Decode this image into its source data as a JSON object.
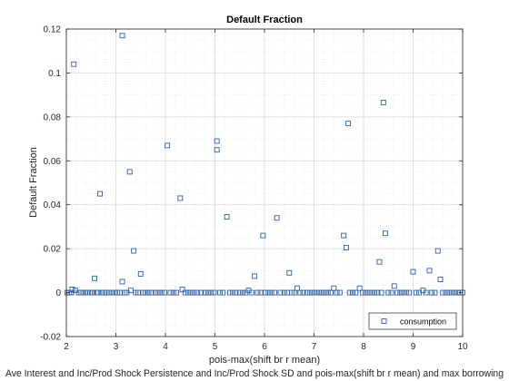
{
  "chart_data": {
    "type": "scatter",
    "title": "Default Fraction",
    "xlabel": "pois-max(shift br r mean)",
    "ylabel": "Default Fraction",
    "footer_label": "Ave Interest and Inc/Prod Shock Persistence and Inc/Prod Shock SD and pois-max(shift br r mean) and max borrowing",
    "xlim": [
      2,
      10
    ],
    "ylim": [
      -0.02,
      0.12
    ],
    "xticks": [
      "2",
      "3",
      "4",
      "5",
      "6",
      "7",
      "8",
      "9",
      "10"
    ],
    "yticks": [
      "-0.02",
      "0",
      "0.02",
      "0.04",
      "0.06",
      "0.08",
      "0.1",
      "0.12"
    ],
    "grid": true,
    "minor_grid": true,
    "legend_position": "bottom-right",
    "marker_color": "#2e5f9e",
    "series": [
      {
        "name": "consumption",
        "points": [
          [
            2.15,
            0.104
          ],
          [
            3.13,
            0.117
          ],
          [
            3.28,
            0.055
          ],
          [
            2.68,
            0.045
          ],
          [
            3.36,
            0.019
          ],
          [
            3.5,
            0.0085
          ],
          [
            2.57,
            0.0065
          ],
          [
            3.13,
            0.005
          ],
          [
            2.12,
            0.0015
          ],
          [
            2.18,
            0.001
          ],
          [
            3.3,
            0.001
          ],
          [
            4.04,
            0.067
          ],
          [
            4.3,
            0.043
          ],
          [
            4.34,
            0.0015
          ],
          [
            5.04,
            0.069
          ],
          [
            5.04,
            0.065
          ],
          [
            5.24,
            0.0345
          ],
          [
            5.97,
            0.026
          ],
          [
            6.25,
            0.034
          ],
          [
            5.8,
            0.0075
          ],
          [
            6.5,
            0.009
          ],
          [
            6.66,
            0.002
          ],
          [
            5.68,
            0.001
          ],
          [
            7.6,
            0.026
          ],
          [
            7.65,
            0.0205
          ],
          [
            7.69,
            0.077
          ],
          [
            8.4,
            0.0865
          ],
          [
            8.44,
            0.027
          ],
          [
            8.32,
            0.014
          ],
          [
            7.4,
            0.002
          ],
          [
            7.92,
            0.002
          ],
          [
            9.0,
            0.0095
          ],
          [
            9.33,
            0.01
          ],
          [
            9.5,
            0.019
          ],
          [
            9.55,
            0.006
          ],
          [
            8.62,
            0.003
          ],
          [
            9.2,
            0.001
          ],
          [
            2.02,
            0
          ],
          [
            2.06,
            0
          ],
          [
            2.1,
            0
          ],
          [
            2.25,
            0
          ],
          [
            2.3,
            0
          ],
          [
            2.34,
            0
          ],
          [
            2.38,
            0
          ],
          [
            2.42,
            0
          ],
          [
            2.48,
            0
          ],
          [
            2.53,
            0
          ],
          [
            2.6,
            0
          ],
          [
            2.64,
            0
          ],
          [
            2.72,
            0
          ],
          [
            2.76,
            0
          ],
          [
            2.8,
            0
          ],
          [
            2.86,
            0
          ],
          [
            2.92,
            0
          ],
          [
            2.98,
            0
          ],
          [
            3.03,
            0
          ],
          [
            3.08,
            0
          ],
          [
            3.18,
            0
          ],
          [
            3.22,
            0
          ],
          [
            3.4,
            0
          ],
          [
            3.45,
            0
          ],
          [
            3.55,
            0
          ],
          [
            3.6,
            0
          ],
          [
            3.66,
            0
          ],
          [
            3.72,
            0
          ],
          [
            3.8,
            0
          ],
          [
            3.86,
            0
          ],
          [
            3.92,
            0
          ],
          [
            3.98,
            0
          ],
          [
            4.1,
            0
          ],
          [
            4.16,
            0
          ],
          [
            4.22,
            0
          ],
          [
            4.4,
            0
          ],
          [
            4.46,
            0
          ],
          [
            4.52,
            0
          ],
          [
            4.58,
            0
          ],
          [
            4.64,
            0
          ],
          [
            4.72,
            0
          ],
          [
            4.8,
            0
          ],
          [
            4.86,
            0
          ],
          [
            4.92,
            0
          ],
          [
            4.98,
            0
          ],
          [
            5.1,
            0
          ],
          [
            5.16,
            0
          ],
          [
            5.3,
            0
          ],
          [
            5.36,
            0
          ],
          [
            5.42,
            0
          ],
          [
            5.5,
            0
          ],
          [
            5.56,
            0
          ],
          [
            5.62,
            0
          ],
          [
            5.74,
            0
          ],
          [
            5.86,
            0
          ],
          [
            5.92,
            0
          ],
          [
            6.02,
            0
          ],
          [
            6.08,
            0
          ],
          [
            6.14,
            0
          ],
          [
            6.2,
            0
          ],
          [
            6.32,
            0
          ],
          [
            6.4,
            0
          ],
          [
            6.46,
            0
          ],
          [
            6.55,
            0
          ],
          [
            6.6,
            0
          ],
          [
            6.72,
            0
          ],
          [
            6.78,
            0
          ],
          [
            6.86,
            0
          ],
          [
            6.92,
            0
          ],
          [
            6.98,
            0
          ],
          [
            7.04,
            0
          ],
          [
            7.1,
            0
          ],
          [
            7.16,
            0
          ],
          [
            7.22,
            0
          ],
          [
            7.28,
            0
          ],
          [
            7.34,
            0
          ],
          [
            7.46,
            0
          ],
          [
            7.52,
            0
          ],
          [
            7.72,
            0
          ],
          [
            7.78,
            0
          ],
          [
            7.84,
            0
          ],
          [
            7.98,
            0
          ],
          [
            8.04,
            0
          ],
          [
            8.1,
            0
          ],
          [
            8.16,
            0
          ],
          [
            8.22,
            0
          ],
          [
            8.28,
            0
          ],
          [
            8.36,
            0
          ],
          [
            8.5,
            0
          ],
          [
            8.56,
            0
          ],
          [
            8.68,
            0
          ],
          [
            8.74,
            0
          ],
          [
            8.8,
            0
          ],
          [
            8.86,
            0
          ],
          [
            8.92,
            0
          ],
          [
            9.06,
            0
          ],
          [
            9.12,
            0
          ],
          [
            9.26,
            0
          ],
          [
            9.38,
            0
          ],
          [
            9.44,
            0
          ],
          [
            9.6,
            0
          ],
          [
            9.66,
            0
          ],
          [
            9.72,
            0
          ],
          [
            9.78,
            0
          ],
          [
            9.84,
            0
          ],
          [
            9.9,
            0
          ],
          [
            9.95,
            0
          ],
          [
            10.0,
            0
          ]
        ]
      }
    ]
  }
}
